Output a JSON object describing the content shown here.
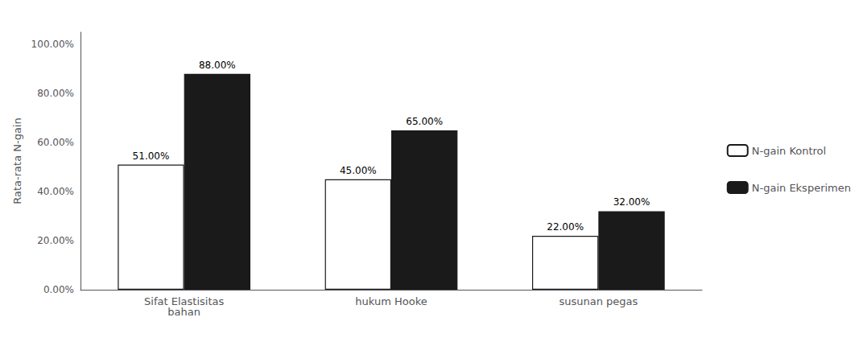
{
  "chart_data": {
    "type": "bar",
    "ylabel": "Rata-rata N-gain",
    "categories": [
      "Sifat Elastisitas\nbahan",
      "hukum Hooke",
      "susunan pegas"
    ],
    "series": [
      {
        "name": "N-gain Kontrol",
        "color": "#ffffff",
        "values": [
          51.0,
          45.0,
          22.0
        ],
        "value_labels": [
          "51.00%",
          "45.00%",
          "22.00%"
        ]
      },
      {
        "name": "N-gain Eksperimen",
        "color": "#1a1a1a",
        "values": [
          88.0,
          65.0,
          32.0
        ],
        "value_labels": [
          "88.00%",
          "65.00%",
          "32.00%"
        ]
      }
    ],
    "ylim": [
      0,
      105
    ],
    "yticks": [
      {
        "value": 0,
        "label": "0.00%"
      },
      {
        "value": 20,
        "label": "20.00%"
      },
      {
        "value": 40,
        "label": "40.00%"
      },
      {
        "value": 60,
        "label": "60.00%"
      },
      {
        "value": 80,
        "label": "80.00%"
      },
      {
        "value": 100,
        "label": "100.00%"
      }
    ],
    "grid": false,
    "legend": "right",
    "data_labels": true
  }
}
